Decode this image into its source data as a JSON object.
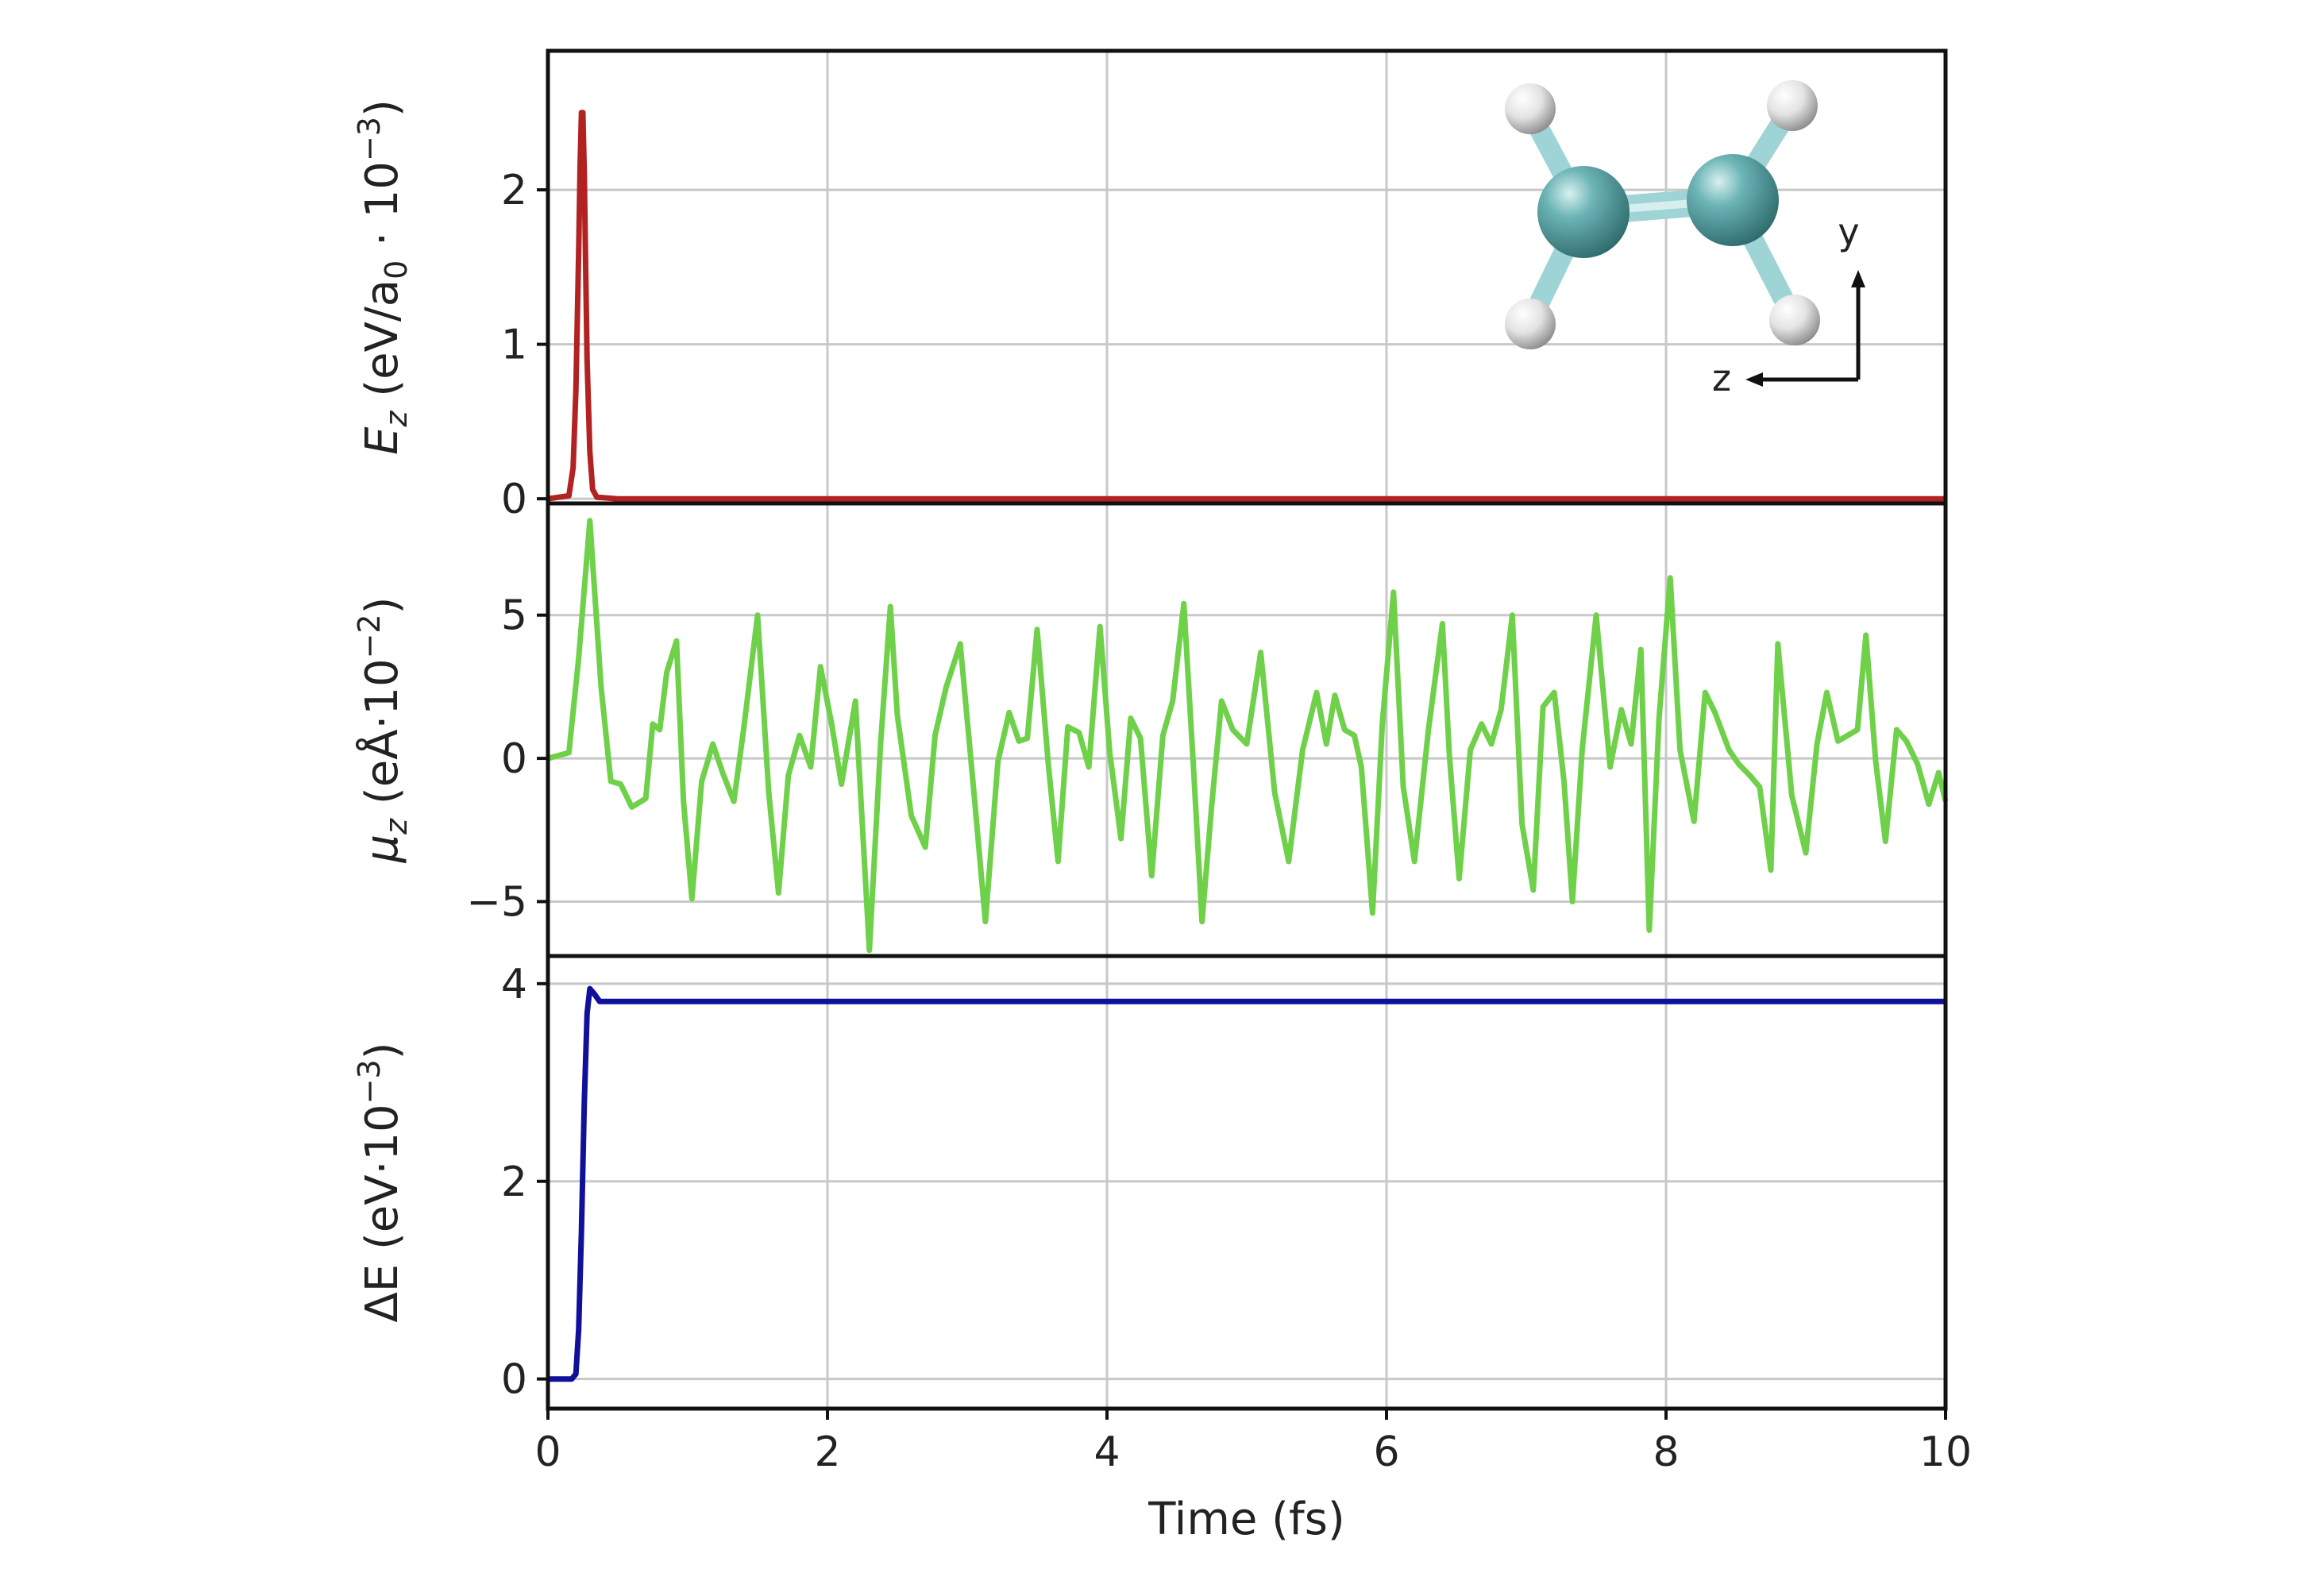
{
  "colors": {
    "panel1_line": "#b22222",
    "panel2_line": "#6fd04a",
    "panel3_line": "#10109a",
    "carbon_atom": "#4f9ea0",
    "hydrogen_atom": "#e8e8e8",
    "bond": "#9fd4d6"
  },
  "molecule": {
    "icon": "ethylene-molecule-icon",
    "axis_y_label": "y",
    "axis_z_label": "z"
  },
  "chart_data": [
    {
      "type": "line",
      "panel": "top",
      "ylabel": "E_z (eV/a₀ · 10⁻³)",
      "ylabel_parts": {
        "main": "E",
        "sub": "z",
        "rest": " (eV/a",
        "sub2": "0",
        "tail": " · 10",
        "sup": "−3",
        "close": ")"
      },
      "xlim": [
        0,
        10
      ],
      "ylim": [
        -0.03,
        2.9
      ],
      "yticks": [
        0,
        1,
        2
      ],
      "ytick_labels": [
        "0",
        "1",
        "2"
      ],
      "grid": true,
      "series": [
        {
          "x": [
            0,
            0.15,
            0.18,
            0.2,
            0.22,
            0.23,
            0.24,
            0.25,
            0.26,
            0.27,
            0.28,
            0.3,
            0.32,
            0.35,
            0.5,
            10
          ],
          "y": [
            0,
            0.02,
            0.2,
            0.7,
            1.6,
            2.15,
            2.5,
            2.5,
            2.1,
            1.5,
            0.9,
            0.3,
            0.06,
            0.01,
            0,
            0
          ]
        }
      ]
    },
    {
      "type": "line",
      "panel": "middle",
      "ylabel": "μ_z (eÅ·10⁻²)",
      "ylabel_parts": {
        "main": "μ",
        "sub": "z",
        "rest": " (eÅ·10",
        "sup": "−2",
        "close": ")"
      },
      "xlim": [
        0,
        10
      ],
      "ylim": [
        -6.9,
        8.9
      ],
      "yticks": [
        -5,
        0,
        5
      ],
      "ytick_labels": [
        "−5",
        "0",
        "5"
      ],
      "grid": true,
      "series": [
        {
          "x": [
            0,
            0.15,
            0.22,
            0.3,
            0.38,
            0.45,
            0.52,
            0.6,
            0.7,
            0.75,
            0.8,
            0.85,
            0.92,
            0.97,
            1.03,
            1.1,
            1.18,
            1.25,
            1.33,
            1.4,
            1.5,
            1.58,
            1.65,
            1.72,
            1.8,
            1.88,
            1.95,
            2.03,
            2.1,
            2.2,
            2.3,
            2.38,
            2.45,
            2.5,
            2.6,
            2.7,
            2.77,
            2.85,
            2.95,
            3.05,
            3.13,
            3.22,
            3.3,
            3.37,
            3.43,
            3.5,
            3.58,
            3.65,
            3.72,
            3.8,
            3.87,
            3.95,
            4.02,
            4.1,
            4.17,
            4.24,
            4.32,
            4.4,
            4.47,
            4.55,
            4.62,
            4.68,
            4.75,
            4.82,
            4.9,
            5.0,
            5.1,
            5.2,
            5.3,
            5.4,
            5.5,
            5.57,
            5.63,
            5.7,
            5.77,
            5.82,
            5.9,
            5.97,
            6.05,
            6.12,
            6.2,
            6.3,
            6.4,
            6.45,
            6.52,
            6.6,
            6.68,
            6.75,
            6.82,
            6.9,
            6.97,
            7.05,
            7.12,
            7.2,
            7.27,
            7.33,
            7.4,
            7.5,
            7.6,
            7.68,
            7.75,
            7.82,
            7.88,
            7.95,
            8.03,
            8.1,
            8.2,
            8.28,
            8.35,
            8.45,
            8.52,
            8.6,
            8.67,
            8.75,
            8.8,
            8.9,
            9.0,
            9.08,
            9.15,
            9.23,
            9.3,
            9.37,
            9.43,
            9.5,
            9.57,
            9.65,
            9.72,
            9.8,
            9.88,
            9.95,
            10.0
          ],
          "y": [
            0,
            0.2,
            3.5,
            8.3,
            2.5,
            -0.8,
            -0.9,
            -1.7,
            -1.4,
            1.2,
            1.0,
            3.0,
            4.1,
            -1.5,
            -4.9,
            -0.8,
            0.5,
            -0.5,
            -1.5,
            1.0,
            5.0,
            -1.2,
            -4.7,
            -0.6,
            0.8,
            -0.3,
            3.2,
            1.2,
            -0.9,
            2.0,
            -6.7,
            0.5,
            5.3,
            1.5,
            -2.0,
            -3.1,
            0.8,
            2.5,
            4.0,
            -1.3,
            -5.7,
            -0.1,
            1.6,
            0.6,
            0.7,
            4.5,
            -0.2,
            -3.6,
            1.1,
            0.9,
            -0.3,
            4.6,
            0.2,
            -2.8,
            1.4,
            0.7,
            -4.1,
            0.8,
            2.0,
            5.4,
            -0.4,
            -5.7,
            -1.6,
            2.0,
            1.0,
            0.5,
            3.7,
            -1.2,
            -3.6,
            0.3,
            2.3,
            0.5,
            2.2,
            1.0,
            0.8,
            -0.3,
            -5.4,
            1.2,
            5.8,
            -1.0,
            -3.6,
            1.0,
            4.7,
            0.1,
            -4.2,
            0.3,
            1.2,
            0.5,
            1.7,
            5.0,
            -2.3,
            -4.6,
            1.8,
            2.3,
            -0.8,
            -5.0,
            0.3,
            5.0,
            -0.3,
            1.7,
            0.5,
            3.8,
            -6.0,
            1.4,
            6.3,
            0.3,
            -2.2,
            2.3,
            1.6,
            0.3,
            -0.2,
            -0.6,
            -1.0,
            -3.9,
            4.0,
            -1.3,
            -3.3,
            0.5,
            2.3,
            0.6,
            0.8,
            1.0,
            4.3,
            -0.1,
            -2.9,
            1.0,
            0.6,
            -0.2,
            -1.6,
            -0.5,
            -1.5
          ]
        }
      ]
    },
    {
      "type": "line",
      "panel": "bottom",
      "ylabel": "ΔE (eV·10⁻³)",
      "ylabel_parts": {
        "main": "ΔE (eV·10",
        "sup": "−3",
        "close": ")"
      },
      "xlabel": "Time (fs)",
      "xlim": [
        0,
        10
      ],
      "ylim": [
        -0.3,
        4.28
      ],
      "xticks": [
        0,
        2,
        4,
        6,
        8,
        10
      ],
      "xtick_labels": [
        "0",
        "2",
        "4",
        "6",
        "8",
        "10"
      ],
      "yticks": [
        0,
        2,
        4
      ],
      "ytick_labels": [
        "0",
        "2",
        "4"
      ],
      "grid": true,
      "series": [
        {
          "x": [
            0,
            0.17,
            0.2,
            0.22,
            0.24,
            0.26,
            0.28,
            0.3,
            0.33,
            0.37,
            0.42,
            10
          ],
          "y": [
            0,
            0,
            0.05,
            0.5,
            1.5,
            2.8,
            3.7,
            3.95,
            3.9,
            3.82,
            3.82,
            3.82
          ]
        }
      ]
    }
  ]
}
